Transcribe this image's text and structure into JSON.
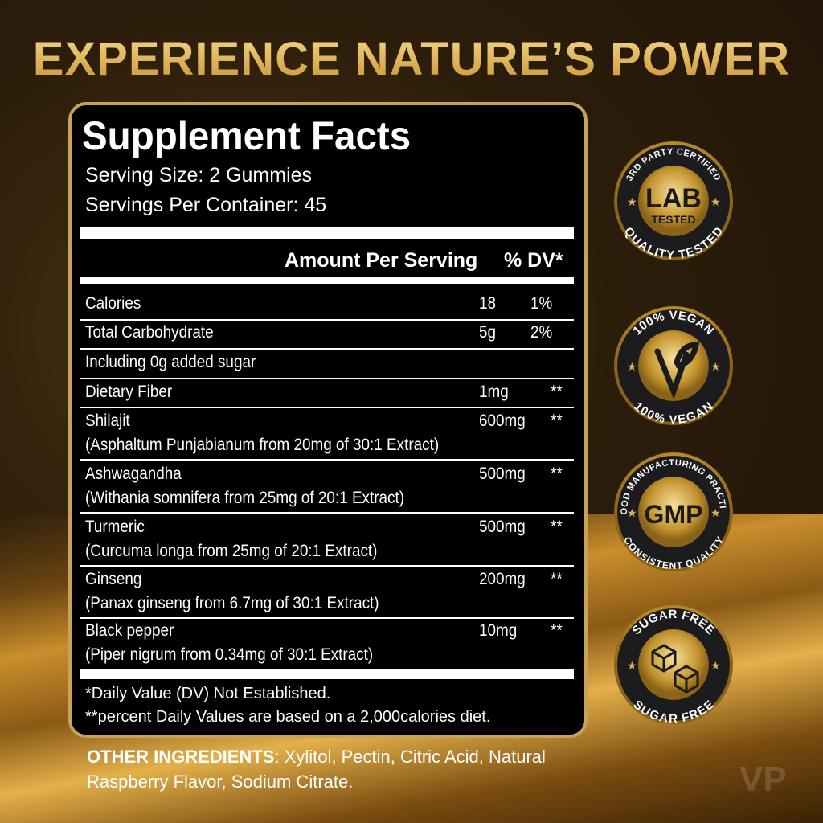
{
  "headline": "EXPERIENCE NATURE’S POWER",
  "facts": {
    "title": "Supplement Facts",
    "serving_size": "Serving Size: 2 Gummies",
    "servings_per_container": "Servings Per Container: 45",
    "amount_header": "Amount Per Serving",
    "dv_header": "% DV*",
    "rows": [
      {
        "name": "Calories",
        "sub": "",
        "amount": "18",
        "dv": "1%"
      },
      {
        "name": "Total Carbohydrate",
        "sub": "",
        "amount": "5g",
        "dv": "2%"
      },
      {
        "name": "Including 0g added sugar",
        "sub": "",
        "amount": "",
        "dv": ""
      },
      {
        "name": "Dietary Fiber",
        "sub": "",
        "amount": "1mg",
        "dv": "**"
      },
      {
        "name": "Shilajit",
        "sub": "(Asphaltum Punjabianum from 20mg of 30:1 Extract)",
        "amount": "600mg",
        "dv": "**"
      },
      {
        "name": "Ashwagandha",
        "sub": "(Withania somnifera from 25mg of 20:1 Extract)",
        "amount": "500mg",
        "dv": "**"
      },
      {
        "name": "Turmeric",
        "sub": "(Curcuma longa from 25mg of 20:1 Extract)",
        "amount": "500mg",
        "dv": "**"
      },
      {
        "name": "Ginseng",
        "sub": " (Panax ginseng from 6.7mg of 30:1 Extract)",
        "amount": "200mg",
        "dv": "**"
      },
      {
        "name": "Black pepper",
        "sub": "(Piper nigrum from 0.34mg of 30:1 Extract)",
        "amount": "10mg",
        "dv": "**"
      }
    ],
    "footnote1": "*Daily Value (DV) Not Established.",
    "footnote2": "**percent Daily Values are based on a 2,000calories diet."
  },
  "other_ingredients": {
    "label": "OTHER INGREDIENTS",
    "text": ": Xylitol, Pectin, Citric Acid, Natural Raspberry Flavor, Sodium Citrate."
  },
  "badges": [
    {
      "top": "3RD PARTY CERTIFIED",
      "center": "LAB",
      "center2": "TESTED",
      "bottom": "QUALITY TESTED",
      "icon": "drop-icon"
    },
    {
      "top": "100% VEGAN",
      "center": "",
      "center2": "",
      "bottom": "100% VEGAN",
      "icon": "vegan-leaf-icon"
    },
    {
      "top": "GOOD MANUFACTURING PRACTICE",
      "center": "GMP",
      "center2": "",
      "bottom": "CONSISTENT QUALITY",
      "icon": "star-icon"
    },
    {
      "top": "SUGAR FREE",
      "center": "",
      "center2": "",
      "bottom": "SUGAR FREE",
      "icon": "sugar-cube-icon"
    }
  ],
  "watermark": "VP",
  "colors": {
    "gold": "#c9a25a",
    "panel": "#000000"
  }
}
